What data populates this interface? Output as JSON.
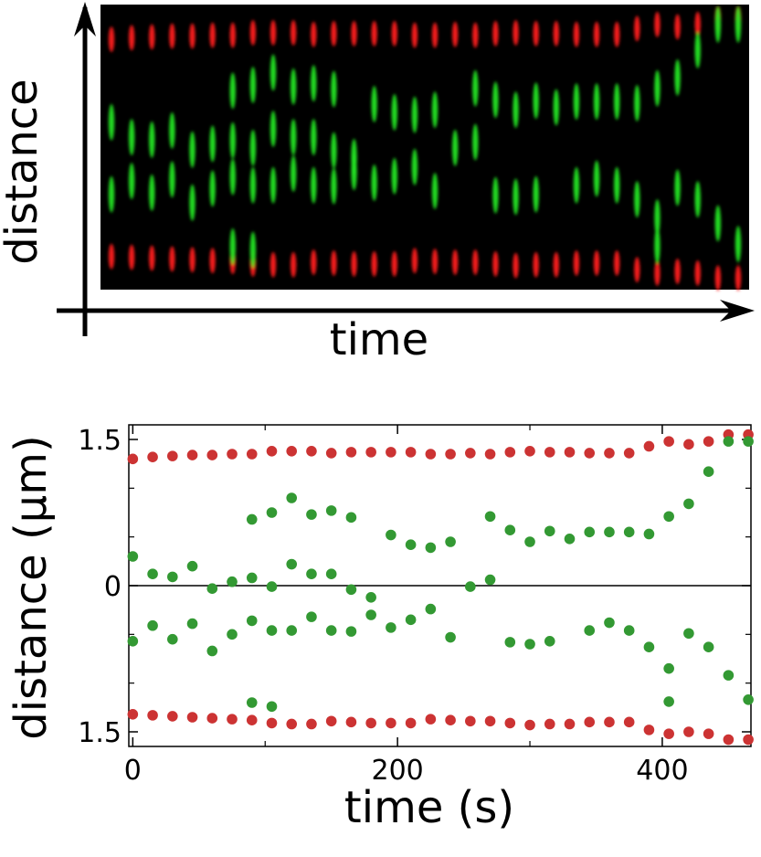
{
  "chart_data": [
    {
      "type": "image",
      "xlabel": "time",
      "ylabel": "distance",
      "channel_colors": {
        "outer": "#ff1a1a",
        "inner": "#22e622",
        "background": "#000000"
      }
    },
    {
      "type": "scatter",
      "xlabel": "time (s)",
      "ylabel": "distance (µm)",
      "xlim": [
        -3,
        467
      ],
      "ylim": [
        -1.65,
        1.65
      ],
      "xticks": [
        0,
        200,
        400
      ],
      "xtick_labels": [
        "0",
        "200",
        "400"
      ],
      "yticks": [
        1.5,
        0,
        -1.5
      ],
      "ytick_labels": [
        "1.5",
        "0",
        "1.5"
      ],
      "zero_line": true,
      "grid": false,
      "series": [
        {
          "color": "#cc3333",
          "points": [
            [
              0,
              1.3
            ],
            [
              15,
              1.32
            ],
            [
              30,
              1.33
            ],
            [
              45,
              1.34
            ],
            [
              60,
              1.34
            ],
            [
              75,
              1.35
            ],
            [
              90,
              1.35
            ],
            [
              105,
              1.38
            ],
            [
              120,
              1.38
            ],
            [
              135,
              1.38
            ],
            [
              150,
              1.36
            ],
            [
              165,
              1.37
            ],
            [
              180,
              1.37
            ],
            [
              195,
              1.37
            ],
            [
              210,
              1.37
            ],
            [
              225,
              1.35
            ],
            [
              240,
              1.35
            ],
            [
              255,
              1.36
            ],
            [
              270,
              1.35
            ],
            [
              285,
              1.37
            ],
            [
              300,
              1.38
            ],
            [
              315,
              1.37
            ],
            [
              330,
              1.37
            ],
            [
              345,
              1.36
            ],
            [
              360,
              1.36
            ],
            [
              375,
              1.36
            ],
            [
              390,
              1.43
            ],
            [
              405,
              1.48
            ],
            [
              420,
              1.45
            ],
            [
              435,
              1.48
            ],
            [
              450,
              1.55
            ],
            [
              465,
              1.55
            ],
            [
              0,
              -1.32
            ],
            [
              15,
              -1.33
            ],
            [
              30,
              -1.34
            ],
            [
              45,
              -1.35
            ],
            [
              60,
              -1.36
            ],
            [
              75,
              -1.37
            ],
            [
              90,
              -1.38
            ],
            [
              105,
              -1.41
            ],
            [
              120,
              -1.42
            ],
            [
              135,
              -1.42
            ],
            [
              150,
              -1.39
            ],
            [
              165,
              -1.4
            ],
            [
              180,
              -1.41
            ],
            [
              195,
              -1.41
            ],
            [
              210,
              -1.41
            ],
            [
              225,
              -1.37
            ],
            [
              240,
              -1.38
            ],
            [
              255,
              -1.39
            ],
            [
              270,
              -1.39
            ],
            [
              285,
              -1.41
            ],
            [
              300,
              -1.43
            ],
            [
              315,
              -1.42
            ],
            [
              330,
              -1.42
            ],
            [
              345,
              -1.4
            ],
            [
              360,
              -1.4
            ],
            [
              375,
              -1.4
            ],
            [
              390,
              -1.48
            ],
            [
              405,
              -1.52
            ],
            [
              420,
              -1.5
            ],
            [
              435,
              -1.52
            ],
            [
              450,
              -1.58
            ],
            [
              465,
              -1.58
            ]
          ]
        },
        {
          "color": "#339933",
          "points": [
            [
              0,
              0.3
            ],
            [
              15,
              0.12
            ],
            [
              30,
              0.09
            ],
            [
              45,
              0.2
            ],
            [
              60,
              -0.03
            ],
            [
              75,
              0.04
            ],
            [
              90,
              0.08
            ],
            [
              90,
              0.68
            ],
            [
              105,
              0.75
            ],
            [
              105,
              -0.01
            ],
            [
              120,
              0.9
            ],
            [
              120,
              0.22
            ],
            [
              135,
              0.73
            ],
            [
              135,
              0.12
            ],
            [
              150,
              0.77
            ],
            [
              150,
              0.12
            ],
            [
              165,
              0.7
            ],
            [
              165,
              -0.04
            ],
            [
              180,
              -0.12
            ],
            [
              195,
              0.52
            ],
            [
              210,
              0.42
            ],
            [
              225,
              0.39
            ],
            [
              240,
              0.45
            ],
            [
              255,
              -0.01
            ],
            [
              270,
              0.06
            ],
            [
              270,
              0.71
            ],
            [
              285,
              0.57
            ],
            [
              300,
              0.45
            ],
            [
              315,
              0.56
            ],
            [
              330,
              0.48
            ],
            [
              345,
              0.55
            ],
            [
              360,
              0.55
            ],
            [
              375,
              0.55
            ],
            [
              390,
              0.53
            ],
            [
              405,
              0.71
            ],
            [
              420,
              0.84
            ],
            [
              435,
              1.17
            ],
            [
              450,
              1.48
            ],
            [
              465,
              1.48
            ],
            [
              0,
              -0.57
            ],
            [
              15,
              -0.41
            ],
            [
              30,
              -0.55
            ],
            [
              45,
              -0.39
            ],
            [
              60,
              -0.67
            ],
            [
              75,
              -0.5
            ],
            [
              90,
              -0.36
            ],
            [
              90,
              -1.2
            ],
            [
              105,
              -0.46
            ],
            [
              105,
              -1.24
            ],
            [
              120,
              -0.46
            ],
            [
              135,
              -0.32
            ],
            [
              150,
              -0.46
            ],
            [
              165,
              -0.47
            ],
            [
              180,
              -0.3
            ],
            [
              195,
              -0.43
            ],
            [
              210,
              -0.35
            ],
            [
              225,
              -0.24
            ],
            [
              240,
              -0.53
            ],
            [
              285,
              -0.58
            ],
            [
              300,
              -0.6
            ],
            [
              315,
              -0.57
            ],
            [
              345,
              -0.46
            ],
            [
              360,
              -0.38
            ],
            [
              375,
              -0.46
            ],
            [
              390,
              -0.63
            ],
            [
              405,
              -0.85
            ],
            [
              405,
              -1.19
            ],
            [
              420,
              -0.49
            ],
            [
              435,
              -0.63
            ],
            [
              450,
              -0.92
            ],
            [
              465,
              -1.17
            ]
          ]
        }
      ]
    }
  ]
}
